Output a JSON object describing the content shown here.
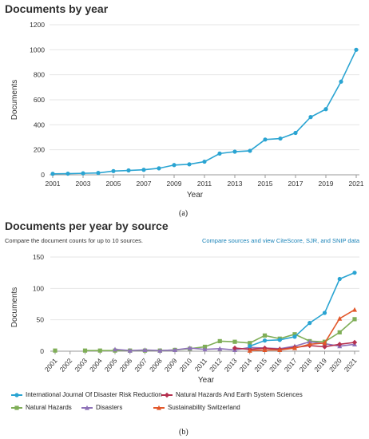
{
  "panel_a": {
    "title": "Documents by year",
    "caption": "(a)"
  },
  "panel_b": {
    "title": "Documents per year by source",
    "subtitle": "Compare the document counts for up to 10 sources.",
    "link": "Compare sources and view CiteScore, SJR, and SNIP data",
    "caption": "(b)"
  },
  "chart_data": [
    {
      "type": "line",
      "title": "Documents by year",
      "xlabel": "Year",
      "ylabel": "Documents",
      "x": [
        2001,
        2002,
        2003,
        2004,
        2005,
        2006,
        2007,
        2008,
        2009,
        2010,
        2011,
        2012,
        2013,
        2014,
        2015,
        2016,
        2017,
        2018,
        2019,
        2020,
        2021
      ],
      "x_ticks": [
        "2001",
        "2003",
        "2005",
        "2007",
        "2009",
        "2011",
        "2013",
        "2015",
        "2017",
        "2019",
        "2021"
      ],
      "y_ticks": [
        "0",
        "200",
        "400",
        "600",
        "800",
        "1000",
        "1200"
      ],
      "ylim": [
        0,
        1200
      ],
      "grid": "horizontal",
      "series": [
        {
          "name": "",
          "color": "#2aa4d2",
          "marker": "circle",
          "values": [
            8,
            9,
            12,
            15,
            30,
            35,
            40,
            52,
            78,
            84,
            105,
            170,
            185,
            192,
            282,
            290,
            335,
            462,
            525,
            745,
            1000
          ]
        }
      ]
    },
    {
      "type": "line",
      "title": "Documents per year by source",
      "xlabel": "Year",
      "ylabel": "Documents",
      "categories": [
        "2001",
        "2002",
        "2003",
        "2004",
        "2005",
        "2006",
        "2007",
        "2008",
        "2009",
        "2010",
        "2011",
        "2012",
        "2013",
        "2014",
        "2015",
        "2016",
        "2017",
        "2018",
        "2019",
        "2020",
        "2021"
      ],
      "y_ticks": [
        "0",
        "50",
        "100",
        "150"
      ],
      "ylim": [
        0,
        150
      ],
      "grid": "horizontal",
      "legend_position": "bottom",
      "series": [
        {
          "name": "International Journal Of Disaster Risk Reduction",
          "color": "#2aa4d2",
          "marker": "circle",
          "values": [
            null,
            null,
            null,
            null,
            null,
            null,
            null,
            null,
            null,
            null,
            null,
            null,
            null,
            8,
            17,
            18,
            23,
            45,
            61,
            115,
            125
          ]
        },
        {
          "name": "Natural Hazards And Earth System Sciences",
          "color": "#b5304f",
          "marker": "diamond",
          "values": [
            null,
            null,
            null,
            null,
            null,
            null,
            null,
            null,
            null,
            null,
            null,
            null,
            5,
            3,
            5,
            3,
            6,
            9,
            7,
            11,
            14
          ]
        },
        {
          "name": "Natural Hazards",
          "color": "#7fae57",
          "marker": "square",
          "values": [
            1,
            null,
            1,
            1,
            1,
            1,
            1,
            1,
            2,
            4,
            7,
            16,
            15,
            13,
            25,
            20,
            27,
            16,
            15,
            30,
            51
          ]
        },
        {
          "name": "Disasters",
          "color": "#8e72b8",
          "marker": "triangle",
          "values": [
            null,
            null,
            null,
            null,
            3,
            1,
            2,
            1,
            2,
            5,
            3,
            4,
            2,
            6,
            5,
            4,
            8,
            15,
            12,
            8,
            11
          ]
        },
        {
          "name": "Sustainability Switzerland",
          "color": "#e2572a",
          "marker": "triangle",
          "values": [
            null,
            null,
            null,
            null,
            null,
            null,
            null,
            null,
            null,
            null,
            null,
            null,
            null,
            1,
            2,
            2,
            5,
            11,
            13,
            52,
            66
          ]
        }
      ]
    }
  ]
}
